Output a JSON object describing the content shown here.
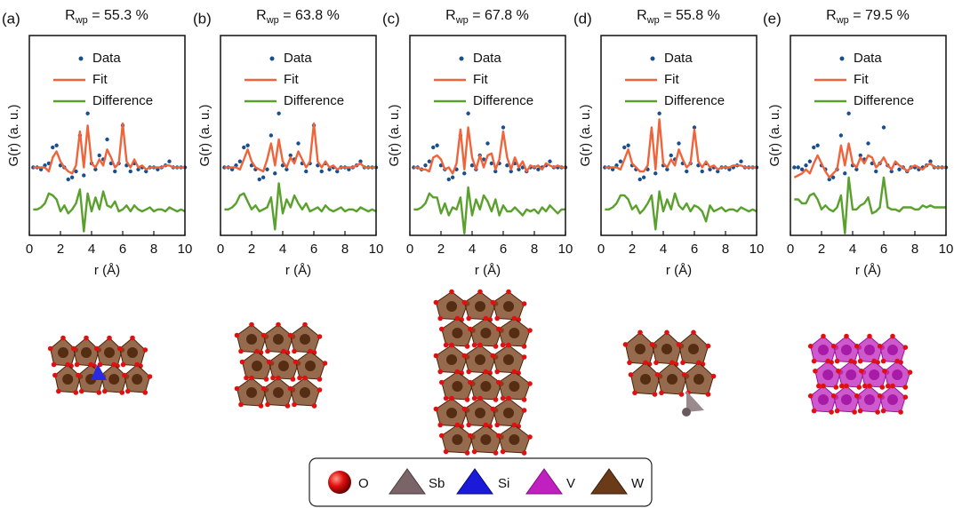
{
  "chart_data": [
    {
      "type": "line",
      "panel_label": "(a)",
      "title": "R",
      "title_subscript": "wp",
      "title_suffix": " = 55.3 %",
      "xlabel": "r (Å)",
      "ylabel": "G(r) (a. u.)",
      "xlim": [
        0,
        10
      ],
      "xticks": [
        0,
        2,
        4,
        6,
        8,
        10
      ],
      "ylim": [
        0,
        10
      ],
      "x": [
        0.25,
        0.5,
        0.75,
        1,
        1.25,
        1.5,
        1.75,
        2,
        2.25,
        2.5,
        2.75,
        3,
        3.25,
        3.5,
        3.75,
        4,
        4.25,
        4.5,
        4.75,
        5,
        5.25,
        5.5,
        5.75,
        6,
        6.25,
        6.5,
        6.75,
        7,
        7.25,
        7.5,
        7.75,
        8,
        8.25,
        8.5,
        8.75,
        9,
        9.25,
        9.5,
        9.75,
        10
      ],
      "series": [
        {
          "name": "Data",
          "style": "dots",
          "color": "#1a4f8e",
          "values": [
            3.4,
            3.4,
            3.3,
            3.5,
            3.6,
            4.4,
            4.5,
            3.5,
            3.4,
            2.8,
            2.9,
            3.2,
            5.0,
            3.0,
            6.1,
            3.6,
            3.3,
            4.0,
            3.8,
            4.8,
            3.6,
            3.2,
            3.6,
            5.5,
            3.5,
            3.2,
            3.6,
            3.3,
            3.4,
            3.2,
            3.4,
            3.4,
            3.3,
            3.4,
            3.5,
            3.7,
            3.4,
            3.4,
            3.4,
            3.4
          ]
        },
        {
          "name": "Fit",
          "style": "line",
          "color": "#f0643c",
          "values": [
            3.4,
            3.4,
            3.4,
            3.4,
            3.2,
            3.9,
            4.2,
            3.7,
            3.4,
            3.2,
            3.1,
            3.5,
            5.2,
            3.4,
            5.5,
            3.6,
            3.4,
            3.8,
            3.5,
            4.3,
            3.9,
            3.4,
            3.6,
            5.6,
            3.7,
            3.4,
            3.8,
            3.4,
            3.5,
            3.3,
            3.4,
            3.4,
            3.4,
            3.4,
            3.5,
            3.5,
            3.4,
            3.4,
            3.4,
            3.4
          ]
        },
        {
          "name": "Difference",
          "style": "line",
          "color": "#5aa02c",
          "values": [
            1.3,
            1.3,
            1.4,
            1.6,
            2.1,
            2.0,
            1.8,
            1.2,
            1.5,
            1.1,
            1.3,
            1.6,
            2.3,
            0.2,
            2.1,
            1.2,
            1.9,
            1.3,
            2.2,
            1.5,
            1.4,
            1.7,
            1.2,
            1.3,
            1.5,
            1.2,
            1.5,
            1.3,
            1.2,
            1.3,
            1.4,
            1.2,
            1.3,
            1.3,
            1.2,
            1.4,
            1.3,
            1.2,
            1.3,
            1.2
          ]
        }
      ]
    },
    {
      "type": "line",
      "panel_label": "(b)",
      "title": "R",
      "title_subscript": "wp",
      "title_suffix": " = 63.8 %",
      "xlabel": "r (Å)",
      "ylabel": "G(r) (a. u.)",
      "xlim": [
        0,
        10
      ],
      "xticks": [
        0,
        2,
        4,
        6,
        8,
        10
      ],
      "ylim": [
        0,
        10
      ],
      "x": [
        0.25,
        0.5,
        0.75,
        1,
        1.25,
        1.5,
        1.75,
        2,
        2.25,
        2.5,
        2.75,
        3,
        3.25,
        3.5,
        3.75,
        4,
        4.25,
        4.5,
        4.75,
        5,
        5.25,
        5.5,
        5.75,
        6,
        6.25,
        6.5,
        6.75,
        7,
        7.25,
        7.5,
        7.75,
        8,
        8.25,
        8.5,
        8.75,
        9,
        9.25,
        9.5,
        9.75,
        10
      ],
      "series": [
        {
          "name": "Data",
          "style": "dots",
          "color": "#1a4f8e",
          "values": [
            3.4,
            3.4,
            3.3,
            3.5,
            3.7,
            4.4,
            4.5,
            3.5,
            3.3,
            2.8,
            2.9,
            3.3,
            5.0,
            3.1,
            6.1,
            3.5,
            3.3,
            4.0,
            3.8,
            4.6,
            3.6,
            3.2,
            3.6,
            5.5,
            3.5,
            3.2,
            3.6,
            3.3,
            3.4,
            3.2,
            3.4,
            3.4,
            3.3,
            3.4,
            3.5,
            3.7,
            3.4,
            3.4,
            3.4,
            3.4
          ]
        },
        {
          "name": "Fit",
          "style": "line",
          "color": "#f0643c",
          "values": [
            3.4,
            3.4,
            3.4,
            3.4,
            3.3,
            3.8,
            4.3,
            3.7,
            3.4,
            3.3,
            3.2,
            3.8,
            4.6,
            3.5,
            4.8,
            3.7,
            3.4,
            3.9,
            3.6,
            4.2,
            3.8,
            3.4,
            3.7,
            5.6,
            3.7,
            3.4,
            3.7,
            3.4,
            3.5,
            3.3,
            3.4,
            3.4,
            3.4,
            3.4,
            3.5,
            3.6,
            3.4,
            3.4,
            3.4,
            3.4
          ]
        },
        {
          "name": "Difference",
          "style": "line",
          "color": "#5aa02c",
          "values": [
            1.3,
            1.3,
            1.4,
            1.6,
            2.0,
            2.1,
            1.7,
            1.3,
            1.5,
            1.2,
            1.3,
            1.4,
            1.9,
            0.3,
            2.6,
            1.1,
            1.8,
            1.4,
            2.0,
            1.6,
            1.3,
            1.6,
            1.2,
            1.3,
            1.4,
            1.2,
            1.5,
            1.3,
            1.2,
            1.3,
            1.4,
            1.2,
            1.3,
            1.3,
            1.2,
            1.4,
            1.3,
            1.2,
            1.3,
            1.2
          ]
        }
      ]
    },
    {
      "type": "line",
      "panel_label": "(c)",
      "title": "R",
      "title_subscript": "wp",
      "title_suffix": " = 67.8 %",
      "xlabel": "r (Å)",
      "ylabel": "G(r) (a. u.)",
      "xlim": [
        0,
        10
      ],
      "xticks": [
        0,
        2,
        4,
        6,
        8,
        10
      ],
      "ylim": [
        0,
        10
      ],
      "x": [
        0.25,
        0.5,
        0.75,
        1,
        1.25,
        1.5,
        1.75,
        2,
        2.25,
        2.5,
        2.75,
        3,
        3.25,
        3.5,
        3.75,
        4,
        4.25,
        4.5,
        4.75,
        5,
        5.25,
        5.5,
        5.75,
        6,
        6.25,
        6.5,
        6.75,
        7,
        7.25,
        7.5,
        7.75,
        8,
        8.25,
        8.5,
        8.75,
        9,
        9.25,
        9.5,
        9.75,
        10
      ],
      "series": [
        {
          "name": "Data",
          "style": "dots",
          "color": "#1a4f8e",
          "values": [
            3.4,
            3.4,
            3.3,
            3.5,
            3.7,
            4.4,
            4.5,
            3.5,
            3.3,
            2.8,
            2.9,
            3.3,
            5.0,
            3.1,
            6.1,
            3.5,
            3.3,
            4.0,
            3.8,
            4.6,
            3.6,
            3.2,
            3.6,
            5.4,
            3.5,
            3.2,
            3.6,
            3.3,
            3.4,
            3.2,
            3.4,
            3.4,
            3.3,
            3.4,
            3.5,
            3.7,
            3.4,
            3.4,
            3.4,
            3.4
          ]
        },
        {
          "name": "Fit",
          "style": "line",
          "color": "#f0643c",
          "values": [
            3.4,
            3.4,
            3.3,
            3.3,
            3.2,
            3.9,
            4.0,
            3.8,
            3.3,
            3.4,
            3.1,
            3.6,
            5.3,
            3.3,
            5.4,
            3.9,
            3.3,
            4.0,
            3.4,
            4.0,
            4.1,
            3.3,
            3.8,
            5.2,
            3.9,
            3.3,
            3.9,
            3.4,
            3.7,
            3.2,
            3.5,
            3.4,
            3.5,
            3.3,
            3.6,
            3.5,
            3.4,
            3.5,
            3.4,
            3.4
          ]
        },
        {
          "name": "Difference",
          "style": "line",
          "color": "#5aa02c",
          "values": [
            1.3,
            1.3,
            1.4,
            1.6,
            2.1,
            1.9,
            1.9,
            1.1,
            1.6,
            1.0,
            1.4,
            1.3,
            1.9,
            0.1,
            2.4,
            1.0,
            1.8,
            1.3,
            2.0,
            1.7,
            1.2,
            1.8,
            1.0,
            1.5,
            1.2,
            1.2,
            1.4,
            1.2,
            1.0,
            1.3,
            1.2,
            1.3,
            1.1,
            1.4,
            1.2,
            1.5,
            1.3,
            1.1,
            1.3,
            1.3
          ]
        }
      ]
    },
    {
      "type": "line",
      "panel_label": "(d)",
      "title": "R",
      "title_subscript": "wp",
      "title_suffix": " = 55.8 %",
      "xlabel": "r (Å)",
      "ylabel": "G(r) (a. u.)",
      "xlim": [
        0,
        10
      ],
      "xticks": [
        0,
        2,
        4,
        6,
        8,
        10
      ],
      "ylim": [
        0,
        10
      ],
      "x": [
        0.25,
        0.5,
        0.75,
        1,
        1.25,
        1.5,
        1.75,
        2,
        2.25,
        2.5,
        2.75,
        3,
        3.25,
        3.5,
        3.75,
        4,
        4.25,
        4.5,
        4.75,
        5,
        5.25,
        5.5,
        5.75,
        6,
        6.25,
        6.5,
        6.75,
        7,
        7.25,
        7.5,
        7.75,
        8,
        8.25,
        8.5,
        8.75,
        9,
        9.25,
        9.5,
        9.75,
        10
      ],
      "series": [
        {
          "name": "Data",
          "style": "dots",
          "color": "#1a4f8e",
          "values": [
            3.4,
            3.4,
            3.3,
            3.5,
            3.7,
            4.4,
            4.5,
            3.5,
            3.3,
            2.8,
            2.9,
            3.3,
            5.0,
            3.1,
            6.1,
            3.5,
            3.3,
            4.0,
            3.8,
            4.6,
            3.6,
            3.2,
            3.6,
            5.4,
            3.5,
            3.2,
            3.6,
            3.3,
            3.4,
            3.2,
            3.4,
            3.4,
            3.3,
            3.4,
            3.5,
            3.7,
            3.4,
            3.4,
            3.4,
            3.4
          ]
        },
        {
          "name": "Fit",
          "style": "line",
          "color": "#f0643c",
          "values": [
            3.4,
            3.4,
            3.4,
            3.4,
            3.3,
            3.8,
            4.3,
            3.6,
            3.4,
            3.2,
            3.2,
            3.5,
            5.4,
            3.3,
            5.8,
            3.6,
            3.4,
            3.8,
            3.5,
            4.3,
            3.8,
            3.4,
            3.6,
            5.3,
            3.7,
            3.4,
            3.7,
            3.4,
            3.5,
            3.3,
            3.4,
            3.4,
            3.4,
            3.5,
            3.5,
            3.5,
            3.4,
            3.4,
            3.4,
            3.4
          ]
        },
        {
          "name": "Difference",
          "style": "line",
          "color": "#5aa02c",
          "values": [
            1.3,
            1.3,
            1.4,
            1.6,
            2.0,
            2.0,
            1.8,
            1.3,
            1.5,
            1.1,
            1.3,
            1.6,
            2.0,
            0.3,
            2.2,
            1.2,
            1.8,
            1.3,
            2.1,
            1.5,
            1.3,
            1.6,
            1.2,
            1.5,
            1.4,
            1.2,
            0.7,
            1.5,
            1.2,
            1.3,
            1.4,
            1.2,
            1.3,
            1.3,
            1.2,
            1.4,
            1.3,
            1.2,
            1.3,
            1.2
          ]
        }
      ]
    },
    {
      "type": "line",
      "panel_label": "(e)",
      "title": "R",
      "title_subscript": "wp",
      "title_suffix": " = 79.5 %",
      "xlabel": "r (Å)",
      "ylabel": "G(r) (a. u.)",
      "xlim": [
        0,
        10
      ],
      "xticks": [
        0,
        2,
        4,
        6,
        8,
        10
      ],
      "ylim": [
        0,
        10
      ],
      "x": [
        0.25,
        0.5,
        0.75,
        1,
        1.25,
        1.5,
        1.75,
        2,
        2.25,
        2.5,
        2.75,
        3,
        3.25,
        3.5,
        3.75,
        4,
        4.25,
        4.5,
        4.75,
        5,
        5.25,
        5.5,
        5.75,
        6,
        6.25,
        6.5,
        6.75,
        7,
        7.25,
        7.5,
        7.75,
        8,
        8.25,
        8.5,
        8.75,
        9,
        9.25,
        9.5,
        9.75,
        10
      ],
      "series": [
        {
          "name": "Data",
          "style": "dots",
          "color": "#1a4f8e",
          "values": [
            3.4,
            3.4,
            3.3,
            3.5,
            3.7,
            4.4,
            4.5,
            3.5,
            3.3,
            2.8,
            2.9,
            3.3,
            5.0,
            3.1,
            6.1,
            3.5,
            3.3,
            4.0,
            3.8,
            4.6,
            3.6,
            3.2,
            3.6,
            5.4,
            3.5,
            3.2,
            3.6,
            3.3,
            3.4,
            3.2,
            3.4,
            3.4,
            3.3,
            3.4,
            3.5,
            3.7,
            3.4,
            3.4,
            3.4,
            3.4
          ]
        },
        {
          "name": "Fit",
          "style": "line",
          "color": "#f0643c",
          "values": [
            2.9,
            3.0,
            3.1,
            3.3,
            3.1,
            3.6,
            4.0,
            3.6,
            3.2,
            2.9,
            3.1,
            3.3,
            4.5,
            3.5,
            4.6,
            3.6,
            3.4,
            3.9,
            3.6,
            4.0,
            3.9,
            3.4,
            3.6,
            3.9,
            3.5,
            3.3,
            3.7,
            3.5,
            3.4,
            3.2,
            3.4,
            3.5,
            3.4,
            3.3,
            3.5,
            3.6,
            3.4,
            3.4,
            3.4,
            3.4
          ]
        },
        {
          "name": "Difference",
          "style": "line",
          "color": "#5aa02c",
          "values": [
            1.8,
            1.8,
            1.6,
            1.6,
            2.0,
            2.1,
            1.8,
            1.3,
            1.5,
            1.3,
            1.2,
            1.4,
            2.0,
            0.1,
            2.9,
            1.3,
            1.3,
            1.5,
            1.6,
            1.9,
            1.1,
            1.2,
            1.4,
            2.9,
            1.4,
            1.3,
            1.3,
            1.2,
            1.4,
            1.4,
            1.4,
            1.3,
            1.3,
            1.5,
            1.4,
            1.5,
            1.4,
            1.4,
            1.4,
            1.4
          ]
        }
      ]
    }
  ],
  "structure_legend": [
    "O",
    "Sb",
    "Si",
    "V",
    "W"
  ]
}
